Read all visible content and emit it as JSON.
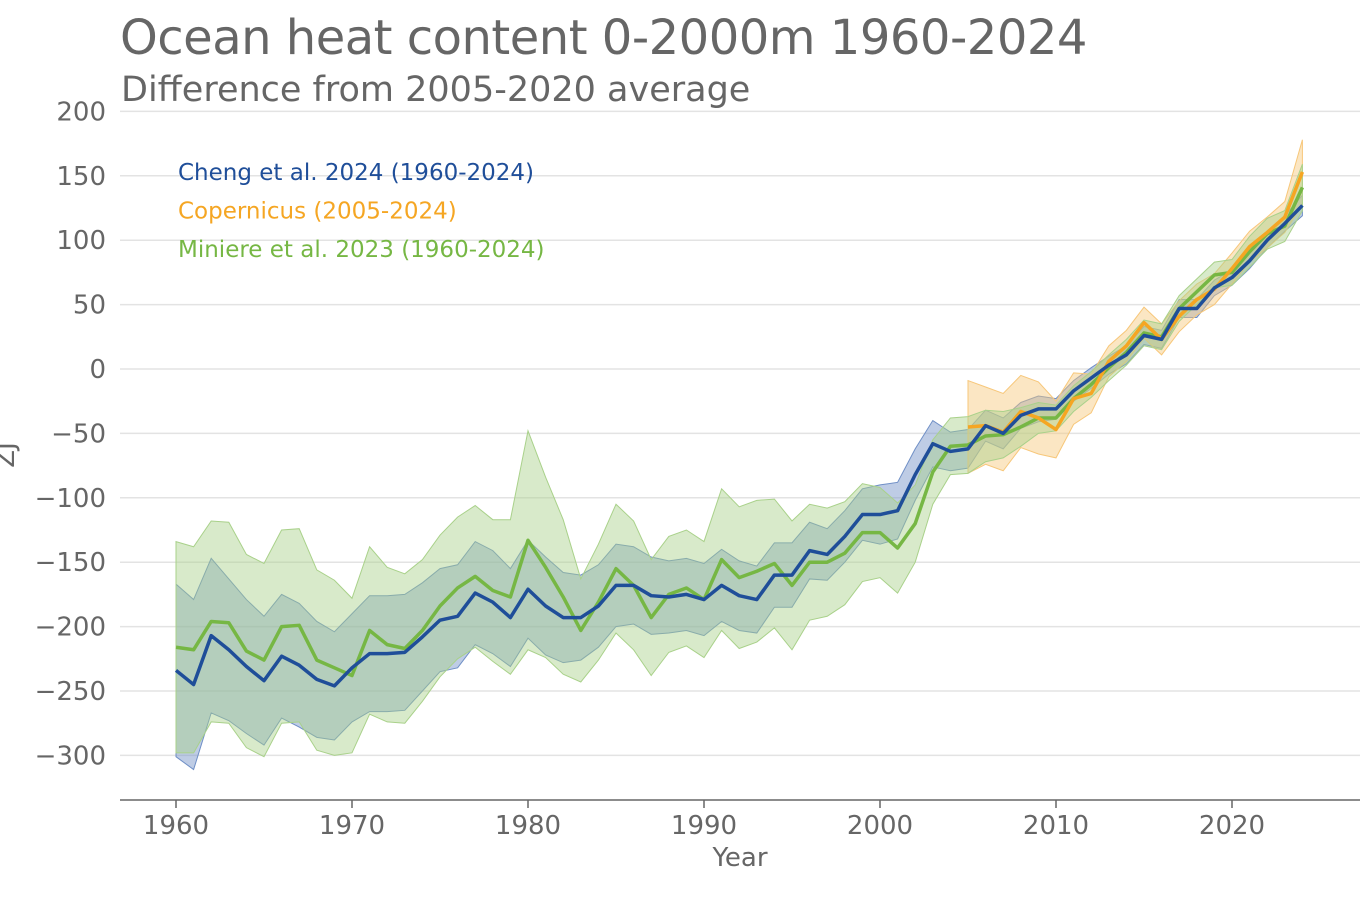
{
  "chart_data": {
    "type": "line",
    "title": "Ocean heat content 0-2000m 1960-2024",
    "subtitle": "Difference from 2005-2020 average",
    "xlabel": "Year",
    "ylabel": "ZJ",
    "xlim": [
      1957,
      2027
    ],
    "ylim": [
      -335,
      200
    ],
    "xticks": [
      1960,
      1970,
      1980,
      1990,
      2000,
      2010,
      2020
    ],
    "yticks": [
      200,
      150,
      100,
      50,
      0,
      -50,
      -100,
      -150,
      -200,
      -250,
      -300
    ],
    "grid": "horizontal",
    "legend_position": "top-left",
    "series": [
      {
        "name": "Cheng et al. 2024 (1960-2024)",
        "color": "#1f4e99",
        "band_color": "#6f8fc6",
        "start_year": 1960,
        "values": [
          -234,
          -245,
          -207,
          -218,
          -231,
          -242,
          -223,
          -230,
          -241,
          -246,
          -232,
          -221,
          -221,
          -220,
          -208,
          -195,
          -192,
          -174,
          -181,
          -193,
          -171,
          -184,
          -193,
          -193,
          -184,
          -168,
          -168,
          -176,
          -177,
          -175,
          -179,
          -168,
          -176,
          -179,
          -160,
          -160,
          -141,
          -144,
          -130,
          -113,
          -113,
          -110,
          -82,
          -58,
          -64,
          -62,
          -44,
          -50,
          -36,
          -31,
          -31,
          -17,
          -7,
          3,
          11,
          26,
          23,
          47,
          47,
          63,
          71,
          84,
          100,
          113,
          127
        ],
        "uncertainty": [
          67,
          66,
          60,
          55,
          52,
          50,
          48,
          48,
          45,
          42,
          42,
          45,
          45,
          45,
          42,
          40,
          40,
          40,
          40,
          38,
          38,
          38,
          35,
          33,
          32,
          32,
          30,
          30,
          28,
          28,
          28,
          28,
          27,
          26,
          25,
          25,
          22,
          20,
          20,
          20,
          23,
          22,
          20,
          18,
          15,
          15,
          12,
          12,
          10,
          10,
          8,
          8,
          8,
          7,
          7,
          7,
          7,
          7,
          7,
          6,
          6,
          6,
          6,
          6,
          8
        ]
      },
      {
        "name": "Copernicus (2005-2024)",
        "color": "#f5a623",
        "band_color": "#f7c77a",
        "start_year": 2005,
        "values": [
          -45,
          -44,
          -49,
          -33,
          -38,
          -47,
          -23,
          -19,
          6,
          18,
          36,
          23,
          41,
          54,
          62,
          78,
          95,
          106,
          118,
          153
        ],
        "uncertainty": [
          36,
          30,
          30,
          28,
          28,
          22,
          20,
          15,
          12,
          12,
          12,
          12,
          12,
          12,
          12,
          12,
          12,
          12,
          12,
          25
        ]
      },
      {
        "name": "Miniere et al. 2023 (1960-2024)",
        "color": "#76b744",
        "band_color": "#a9d18a",
        "start_year": 1960,
        "values": [
          -216,
          -218,
          -196,
          -197,
          -219,
          -226,
          -200,
          -199,
          -226,
          -232,
          -238,
          -203,
          -214,
          -217,
          -203,
          -184,
          -170,
          -161,
          -172,
          -177,
          -133,
          -154,
          -177,
          -203,
          -181,
          -155,
          -168,
          -193,
          -175,
          -170,
          -179,
          -148,
          -162,
          -157,
          -151,
          -168,
          -150,
          -150,
          -143,
          -127,
          -127,
          -139,
          -120,
          -80,
          -60,
          -59,
          -52,
          -51,
          -45,
          -38,
          -38,
          -23,
          -12,
          1,
          13,
          28,
          25,
          47,
          60,
          73,
          75,
          91,
          105,
          111,
          141
        ],
        "uncertainty": [
          82,
          80,
          78,
          78,
          75,
          75,
          75,
          75,
          70,
          68,
          60,
          65,
          60,
          58,
          55,
          55,
          55,
          55,
          55,
          60,
          85,
          70,
          60,
          40,
          45,
          50,
          50,
          45,
          45,
          45,
          45,
          55,
          55,
          55,
          50,
          50,
          45,
          42,
          40,
          38,
          35,
          35,
          30,
          25,
          22,
          22,
          20,
          18,
          15,
          12,
          10,
          10,
          10,
          10,
          10,
          10,
          10,
          10,
          10,
          10,
          10,
          12,
          12,
          12,
          18
        ]
      }
    ]
  }
}
